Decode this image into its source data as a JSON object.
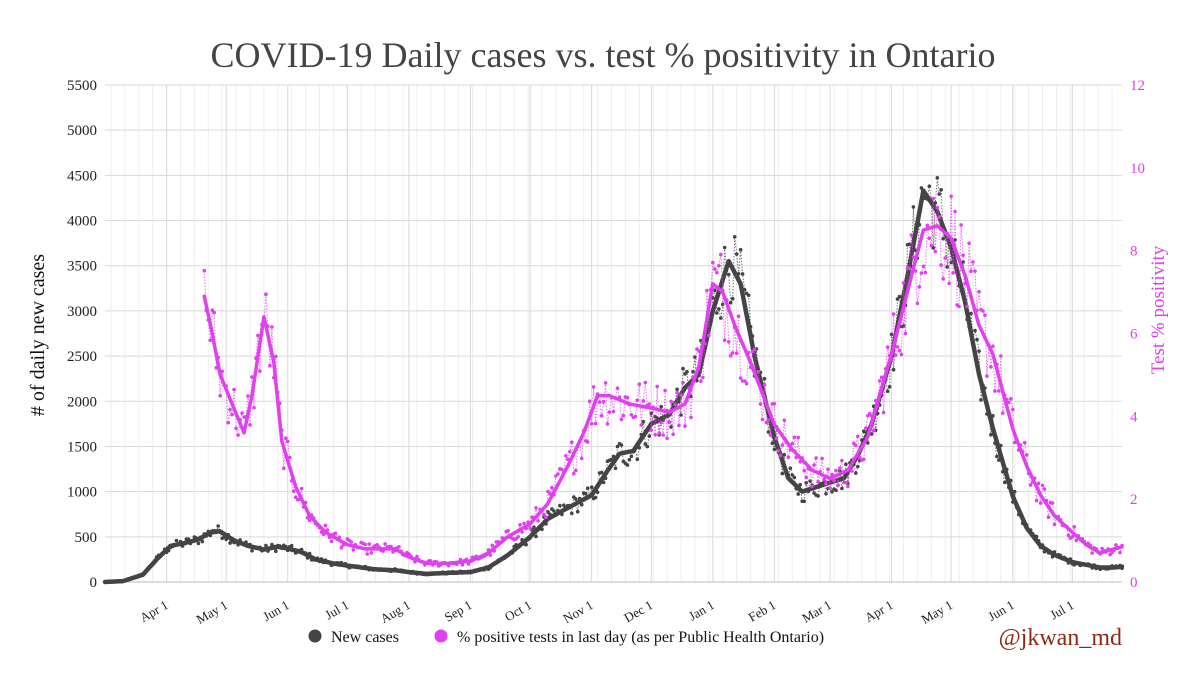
{
  "chart_data": {
    "type": "line",
    "title": "COVID-19 Daily cases vs. test % positivity in Ontario",
    "ylabel_left": "# of daily new cases",
    "ylabel_right": "Test % positivity",
    "ylim_left": [
      0,
      5500
    ],
    "ylim_right": [
      0,
      12
    ],
    "left_ticks": [
      0,
      500,
      1000,
      1500,
      2000,
      2500,
      3000,
      3500,
      4000,
      4500,
      5000,
      5500
    ],
    "right_ticks": [
      0,
      2,
      4,
      6,
      8,
      10,
      12
    ],
    "x_range": [
      "2020-03-01",
      "2021-07-26"
    ],
    "x_ticks": [
      {
        "date": "2020-04-01",
        "label": "Apr 1"
      },
      {
        "date": "2020-05-01",
        "label": "May 1"
      },
      {
        "date": "2020-06-01",
        "label": "Jun 1"
      },
      {
        "date": "2020-07-01",
        "label": "Jul 1"
      },
      {
        "date": "2020-08-01",
        "label": "Aug 1"
      },
      {
        "date": "2020-09-01",
        "label": "Sep 1"
      },
      {
        "date": "2020-10-01",
        "label": "Oct 1"
      },
      {
        "date": "2020-11-01",
        "label": "Nov 1"
      },
      {
        "date": "2020-12-01",
        "label": "Dec 1"
      },
      {
        "date": "2021-01-01",
        "label": "Jan 1"
      },
      {
        "date": "2021-02-01",
        "label": "Feb 1"
      },
      {
        "date": "2021-03-01",
        "label": "Mar 1"
      },
      {
        "date": "2021-04-01",
        "label": "Apr 1"
      },
      {
        "date": "2021-05-01",
        "label": "May 1"
      },
      {
        "date": "2021-06-01",
        "label": "Jun 1"
      },
      {
        "date": "2021-07-01",
        "label": "Jul 1"
      }
    ],
    "grid": true,
    "legend_position": "bottom",
    "series": [
      {
        "name": "New cases",
        "axis": "left",
        "color": "#444444",
        "points": [
          [
            "2020-03-01",
            0
          ],
          [
            "2020-03-10",
            10
          ],
          [
            "2020-03-20",
            80
          ],
          [
            "2020-03-27",
            250
          ],
          [
            "2020-04-03",
            400
          ],
          [
            "2020-04-10",
            430
          ],
          [
            "2020-04-17",
            470
          ],
          [
            "2020-04-24",
            560
          ],
          [
            "2020-04-28",
            560
          ],
          [
            "2020-05-05",
            460
          ],
          [
            "2020-05-12",
            400
          ],
          [
            "2020-05-20",
            360
          ],
          [
            "2020-05-27",
            390
          ],
          [
            "2020-06-01",
            370
          ],
          [
            "2020-06-08",
            330
          ],
          [
            "2020-06-15",
            250
          ],
          [
            "2020-06-25",
            200
          ],
          [
            "2020-07-05",
            170
          ],
          [
            "2020-07-15",
            140
          ],
          [
            "2020-07-25",
            130
          ],
          [
            "2020-08-01",
            110
          ],
          [
            "2020-08-10",
            90
          ],
          [
            "2020-08-20",
            100
          ],
          [
            "2020-09-01",
            110
          ],
          [
            "2020-09-10",
            160
          ],
          [
            "2020-09-20",
            300
          ],
          [
            "2020-10-01",
            500
          ],
          [
            "2020-10-10",
            700
          ],
          [
            "2020-10-20",
            820
          ],
          [
            "2020-11-01",
            960
          ],
          [
            "2020-11-08",
            1200
          ],
          [
            "2020-11-15",
            1420
          ],
          [
            "2020-11-22",
            1450
          ],
          [
            "2020-12-01",
            1750
          ],
          [
            "2020-12-10",
            1850
          ],
          [
            "2020-12-18",
            2150
          ],
          [
            "2020-12-25",
            2300
          ],
          [
            "2021-01-01",
            3000
          ],
          [
            "2021-01-09",
            3550
          ],
          [
            "2021-01-15",
            3300
          ],
          [
            "2021-01-22",
            2500
          ],
          [
            "2021-02-01",
            1600
          ],
          [
            "2021-02-08",
            1150
          ],
          [
            "2021-02-15",
            1000
          ],
          [
            "2021-02-22",
            1050
          ],
          [
            "2021-03-01",
            1100
          ],
          [
            "2021-03-08",
            1150
          ],
          [
            "2021-03-15",
            1400
          ],
          [
            "2021-03-22",
            1750
          ],
          [
            "2021-04-01",
            2500
          ],
          [
            "2021-04-10",
            3500
          ],
          [
            "2021-04-17",
            4330
          ],
          [
            "2021-04-24",
            4100
          ],
          [
            "2021-05-01",
            3700
          ],
          [
            "2021-05-08",
            3100
          ],
          [
            "2021-05-15",
            2300
          ],
          [
            "2021-05-22",
            1700
          ],
          [
            "2021-06-01",
            950
          ],
          [
            "2021-06-08",
            600
          ],
          [
            "2021-06-15",
            400
          ],
          [
            "2021-06-22",
            300
          ],
          [
            "2021-07-01",
            220
          ],
          [
            "2021-07-08",
            190
          ],
          [
            "2021-07-15",
            160
          ],
          [
            "2021-07-22",
            160
          ],
          [
            "2021-07-26",
            170
          ]
        ]
      },
      {
        "name": "% positive tests in last day (as per Public Health Ontario)",
        "axis": "right",
        "color": "#e040f0",
        "points": [
          [
            "2020-04-20",
            6.9
          ],
          [
            "2020-04-24",
            6.0
          ],
          [
            "2020-04-28",
            5.0
          ],
          [
            "2020-05-04",
            4.3
          ],
          [
            "2020-05-10",
            3.6
          ],
          [
            "2020-05-14",
            4.5
          ],
          [
            "2020-05-20",
            6.4
          ],
          [
            "2020-05-25",
            5.3
          ],
          [
            "2020-05-29",
            3.4
          ],
          [
            "2020-06-05",
            2.3
          ],
          [
            "2020-06-12",
            1.6
          ],
          [
            "2020-06-20",
            1.2
          ],
          [
            "2020-07-01",
            0.9
          ],
          [
            "2020-07-10",
            0.8
          ],
          [
            "2020-07-25",
            0.8
          ],
          [
            "2020-08-01",
            0.6
          ],
          [
            "2020-08-10",
            0.45
          ],
          [
            "2020-08-20",
            0.45
          ],
          [
            "2020-09-01",
            0.5
          ],
          [
            "2020-09-10",
            0.7
          ],
          [
            "2020-09-20",
            1.1
          ],
          [
            "2020-10-01",
            1.4
          ],
          [
            "2020-10-10",
            1.9
          ],
          [
            "2020-10-20",
            2.8
          ],
          [
            "2020-10-28",
            3.6
          ],
          [
            "2020-11-04",
            4.5
          ],
          [
            "2020-11-10",
            4.5
          ],
          [
            "2020-11-20",
            4.3
          ],
          [
            "2020-12-01",
            4.2
          ],
          [
            "2020-12-10",
            4.1
          ],
          [
            "2020-12-18",
            4.3
          ],
          [
            "2020-12-25",
            5.2
          ],
          [
            "2021-01-01",
            7.2
          ],
          [
            "2021-01-06",
            7.0
          ],
          [
            "2021-01-12",
            6.2
          ],
          [
            "2021-01-20",
            5.3
          ],
          [
            "2021-02-01",
            3.8
          ],
          [
            "2021-02-10",
            3.2
          ],
          [
            "2021-02-20",
            2.7
          ],
          [
            "2021-03-01",
            2.5
          ],
          [
            "2021-03-10",
            2.7
          ],
          [
            "2021-03-20",
            3.5
          ],
          [
            "2021-04-01",
            5.5
          ],
          [
            "2021-04-10",
            7.2
          ],
          [
            "2021-04-17",
            8.5
          ],
          [
            "2021-04-24",
            8.6
          ],
          [
            "2021-05-01",
            8.3
          ],
          [
            "2021-05-08",
            7.4
          ],
          [
            "2021-05-15",
            6.2
          ],
          [
            "2021-05-22",
            5.5
          ],
          [
            "2021-06-01",
            3.7
          ],
          [
            "2021-06-08",
            2.8
          ],
          [
            "2021-06-15",
            2.1
          ],
          [
            "2021-06-22",
            1.6
          ],
          [
            "2021-07-01",
            1.2
          ],
          [
            "2021-07-08",
            0.9
          ],
          [
            "2021-07-15",
            0.7
          ],
          [
            "2021-07-22",
            0.8
          ],
          [
            "2021-07-26",
            0.85
          ]
        ]
      }
    ]
  },
  "credit": "@jkwan_md"
}
